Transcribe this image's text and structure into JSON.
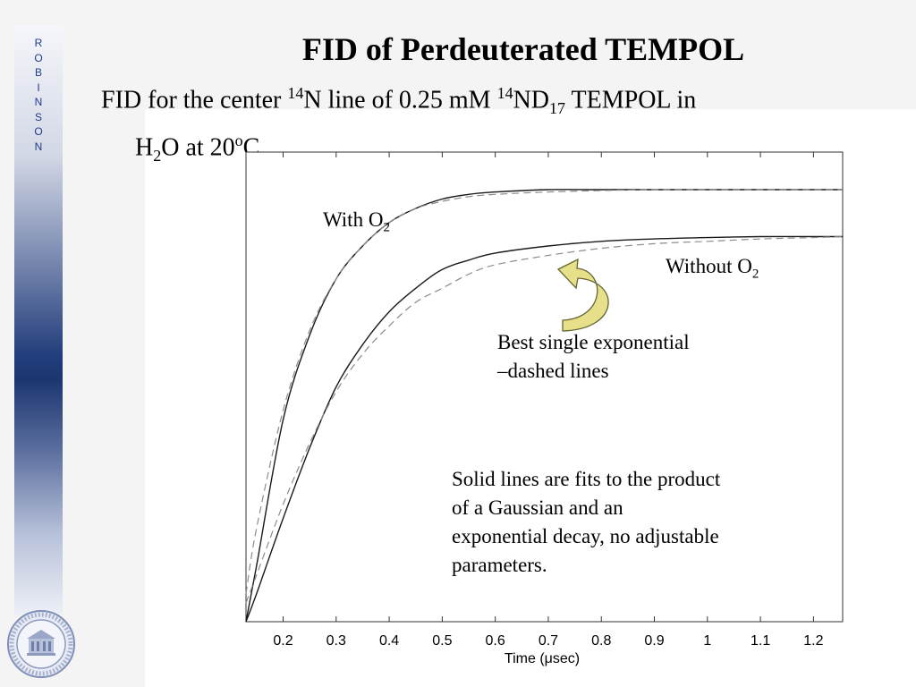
{
  "slide": {
    "title": "FID of Perdeuterated TEMPOL",
    "subtitle": {
      "part1": "FID for the center ",
      "sup1": "14",
      "part2": "N line of 0.25 mM ",
      "sup2": "14",
      "part3": "ND",
      "sub1": "17",
      "part4": " TEMPOL in",
      "line2_part1": "H",
      "line2_sub": "2",
      "line2_part2": "O at 20",
      "line2_sup": "o",
      "line2_part3": "C"
    },
    "side_letters": [
      "R",
      "O",
      "B",
      "I",
      "N",
      "S",
      "O",
      "N"
    ],
    "logo_icon": "university-seal-icon"
  },
  "chart_data": {
    "type": "line",
    "xlabel": "Time (μsec)",
    "ylabel": "",
    "title": "",
    "xlim": [
      0.13,
      1.255
    ],
    "ylim": [
      0.0,
      1.0
    ],
    "x_ticks": [
      0.2,
      0.3,
      0.4,
      0.5,
      0.6,
      0.7,
      0.8,
      0.9,
      1,
      1.1,
      1.2
    ],
    "x_tick_labels": [
      "0.2",
      "0.3",
      "0.4",
      "0.5",
      "0.6",
      "0.7",
      "0.8",
      "0.9",
      "1",
      "1.1",
      "1.2"
    ],
    "grid": false,
    "x": [
      0.13,
      0.15,
      0.2,
      0.25,
      0.3,
      0.35,
      0.4,
      0.45,
      0.5,
      0.55,
      0.6,
      0.7,
      0.8,
      0.9,
      1.0,
      1.1,
      1.2,
      1.255
    ],
    "series": [
      {
        "name": "With O2",
        "style": "solid",
        "values": [
          0.0,
          0.12,
          0.43,
          0.61,
          0.73,
          0.8,
          0.85,
          0.88,
          0.9,
          0.91,
          0.915,
          0.92,
          0.92,
          0.92,
          0.92,
          0.92,
          0.92,
          0.92
        ]
      },
      {
        "name": "With O2 best single exponential",
        "style": "dashed",
        "values": [
          0.06,
          0.2,
          0.45,
          0.62,
          0.73,
          0.8,
          0.85,
          0.88,
          0.895,
          0.905,
          0.91,
          0.915,
          0.918,
          0.92,
          0.92,
          0.92,
          0.92,
          0.92
        ]
      },
      {
        "name": "Without O2",
        "style": "solid",
        "values": [
          0.0,
          0.06,
          0.22,
          0.37,
          0.5,
          0.59,
          0.66,
          0.71,
          0.75,
          0.77,
          0.785,
          0.8,
          0.81,
          0.815,
          0.818,
          0.82,
          0.82,
          0.82
        ]
      },
      {
        "name": "Without O2 best single exponential",
        "style": "dashed",
        "values": [
          0.04,
          0.1,
          0.25,
          0.38,
          0.49,
          0.57,
          0.63,
          0.68,
          0.71,
          0.74,
          0.76,
          0.78,
          0.795,
          0.805,
          0.81,
          0.815,
          0.818,
          0.82
        ]
      }
    ],
    "annotations": {
      "with_o2": {
        "text": "With O",
        "sub": "2"
      },
      "without_o2": {
        "text": "Without O",
        "sub": "2"
      },
      "dashed_note": {
        "line1": "Best single exponential",
        "line2": "–dashed lines"
      },
      "solid_note": {
        "line1": "Solid lines are fits to the product",
        "line2": "of a Gaussian and an",
        "line3": "exponential decay, no adjustable",
        "line4": "parameters."
      }
    },
    "colors": {
      "solid": "#1a1a1a",
      "dashed": "#8c8c8c",
      "arrow_fill": "#e6e08a",
      "arrow_stroke": "#666633"
    }
  }
}
